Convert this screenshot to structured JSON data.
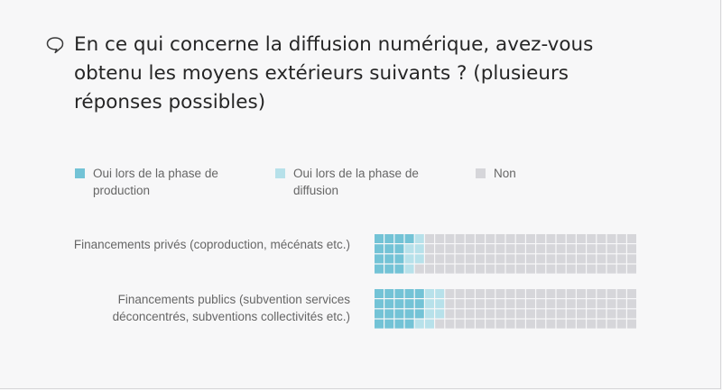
{
  "question": {
    "text": "En ce qui concerne la diffusion numérique, avez-vous obtenu les moyens extérieurs suivants ? (plusieurs réponses possibles)",
    "icon": "speech-bubble-icon"
  },
  "chart_data": {
    "type": "waffle",
    "legend": [
      {
        "label": "Oui lors de la phase de production",
        "color": "#73c3d6"
      },
      {
        "label": "Oui lors de la phase de diffusion",
        "color": "#b7e1ea"
      },
      {
        "label": "Non",
        "color": "#d6d6da"
      }
    ],
    "legend_placement": "top",
    "rows": [
      {
        "label": "Financements privés (coproduction, mécénats etc.)",
        "values": [
          13,
          6,
          97
        ],
        "unit": "cells"
      },
      {
        "label": "Financements publics (subvention services déconcentrés, subventions collectivités etc.)",
        "values": [
          19,
          8,
          89
        ],
        "unit": "cells"
      }
    ],
    "grid": {
      "rows": 4,
      "columns": 26
    }
  }
}
